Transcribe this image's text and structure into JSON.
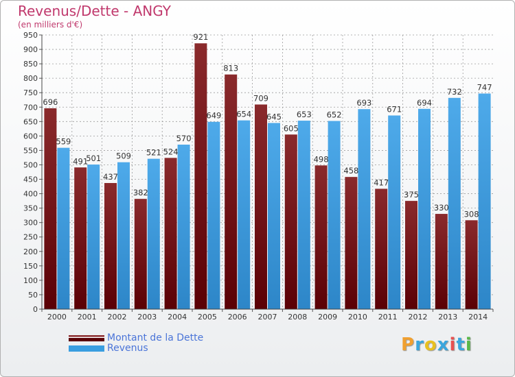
{
  "page": {
    "title": "Revenus/Dette - ANGY",
    "subtitle": "(en milliers d'€)"
  },
  "legend": {
    "debt_label": "Montant de la Dette",
    "revenue_label": "Revenus",
    "position": "bottom-left"
  },
  "logo": {
    "letters": [
      "P",
      "r",
      "o",
      "x",
      "i",
      "t",
      "i"
    ],
    "colors": [
      "#f0a030",
      "#3aa6dd",
      "#e8c020",
      "#3aa6dd",
      "#e85050",
      "#3aa6dd",
      "#58b848"
    ]
  },
  "colors": {
    "debt": "#7a1518",
    "revenue": "#3a9ee0",
    "grid": "#9a9a9a"
  },
  "chart_data": {
    "type": "bar",
    "categories": [
      "2000",
      "2001",
      "2002",
      "2003",
      "2004",
      "2005",
      "2006",
      "2007",
      "2008",
      "2009",
      "2010",
      "2011",
      "2012",
      "2013",
      "2014"
    ],
    "series": [
      {
        "name": "Montant de la Dette",
        "values": [
          696,
          491,
          437,
          382,
          524,
          921,
          813,
          709,
          605,
          498,
          458,
          417,
          375,
          330,
          308
        ]
      },
      {
        "name": "Revenus",
        "values": [
          559,
          501,
          509,
          521,
          570,
          649,
          654,
          645,
          653,
          652,
          693,
          671,
          694,
          732,
          747
        ]
      }
    ],
    "ylim": [
      0,
      950
    ],
    "ytick_step": 50,
    "grid": true
  }
}
